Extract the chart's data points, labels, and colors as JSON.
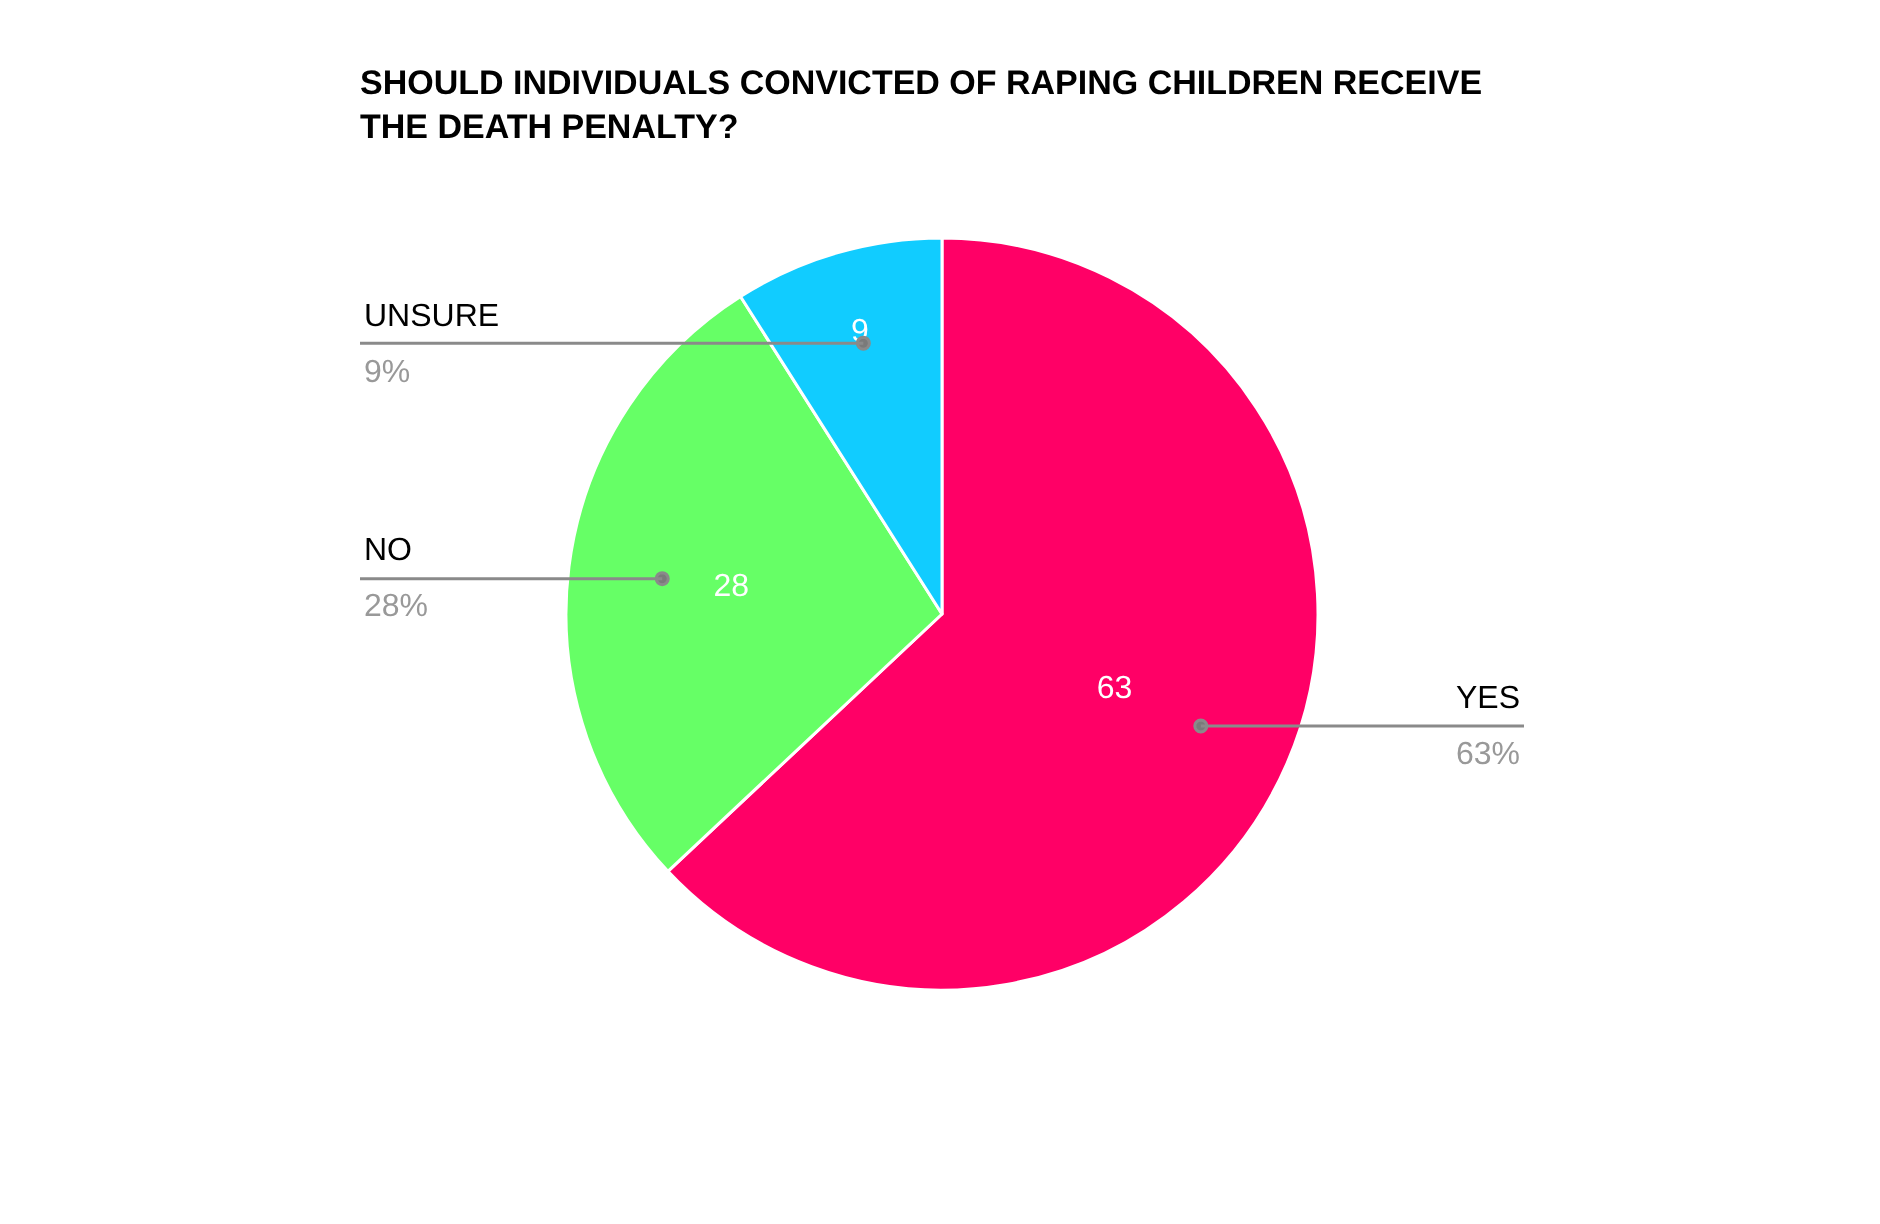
{
  "chart_data": {
    "type": "pie",
    "title": "SHOULD INDIVIDUALS CONVICTED OF RAPING CHILDREN RECEIVE THE DEATH PENALTY?",
    "categories": [
      "YES",
      "NO",
      "UNSURE"
    ],
    "values": [
      63,
      28,
      9
    ],
    "colors": [
      "#ff0066",
      "#66ff66",
      "#11ccff"
    ],
    "data_labels": true,
    "annotations": [
      "63%",
      "28%",
      "9%"
    ]
  }
}
